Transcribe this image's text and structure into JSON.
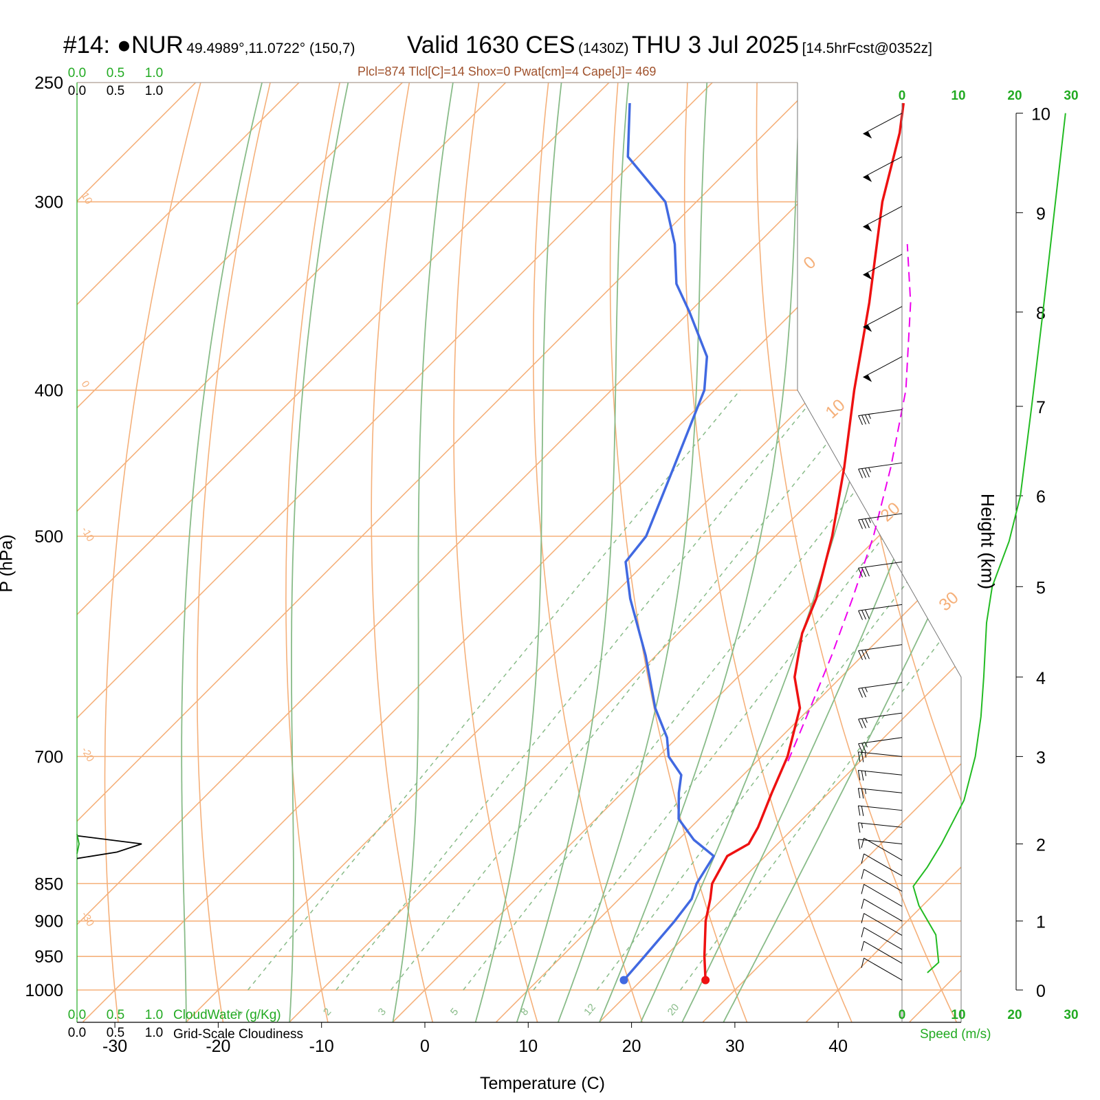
{
  "header": {
    "station": "#14: ●NUR",
    "coords": "49.4989°,11.0722° (150,7)",
    "valid": "Valid 1630 CES",
    "zulu": "(1430Z)",
    "date": "THU 3 Jul 2025",
    "forecast": "[14.5hrFcst@0352z]"
  },
  "params_line": "Plcl=874 Tlcl[C]=14 Shox=0 Pwat[cm]=4 Cape[J]= 469",
  "colors": {
    "temperature": "#ee1111",
    "dewpoint": "#4169e1",
    "parcel": "#ee00ee",
    "isotherm_dry_adiabat": "#f5b07a",
    "moist_adiabat": "#88bb88",
    "mixing_ratio": "#88bb88",
    "speed": "#22bb22",
    "barb": "#000000"
  },
  "chart_data": {
    "type": "skew-t",
    "xlabel": "Temperature (C)",
    "ylabel": "P (hPa)",
    "y2label": "Height (km)",
    "xlim": [
      -34,
      36
    ],
    "ylim": [
      1000,
      250
    ],
    "x_ticks": [
      -30,
      -20,
      -10,
      0,
      10,
      20,
      30,
      40
    ],
    "pressure_levels": [
      1000,
      950,
      900,
      850,
      700,
      500,
      400,
      300,
      250
    ],
    "height_ticks_km": [
      0,
      1,
      2,
      3,
      4,
      5,
      6,
      7,
      8,
      9,
      10
    ],
    "height_at_pressure": [
      {
        "p": 1000,
        "km": 0
      },
      {
        "p": 900,
        "km": 1
      },
      {
        "p": 800,
        "km": 2
      },
      {
        "p": 700,
        "km": 3
      },
      {
        "p": 620,
        "km": 4
      },
      {
        "p": 540,
        "km": 5
      },
      {
        "p": 470,
        "km": 6
      },
      {
        "p": 410,
        "km": 7
      },
      {
        "p": 355,
        "km": 8
      },
      {
        "p": 305,
        "km": 9
      },
      {
        "p": 262,
        "km": 10
      }
    ],
    "temperature": [
      {
        "p": 985,
        "t": 26.2
      },
      {
        "p": 950,
        "t": 23.8
      },
      {
        "p": 900,
        "t": 20.5
      },
      {
        "p": 870,
        "t": 18.8
      },
      {
        "p": 850,
        "t": 17.5
      },
      {
        "p": 815,
        "t": 16.3
      },
      {
        "p": 800,
        "t": 17.2
      },
      {
        "p": 780,
        "t": 16.5
      },
      {
        "p": 740,
        "t": 14.5
      },
      {
        "p": 700,
        "t": 12.5
      },
      {
        "p": 650,
        "t": 9.0
      },
      {
        "p": 620,
        "t": 5.5
      },
      {
        "p": 580,
        "t": 2.0
      },
      {
        "p": 550,
        "t": 0.0
      },
      {
        "p": 500,
        "t": -4.5
      },
      {
        "p": 450,
        "t": -10.0
      },
      {
        "p": 400,
        "t": -16.5
      },
      {
        "p": 350,
        "t": -23.5
      },
      {
        "p": 300,
        "t": -32.0
      },
      {
        "p": 270,
        "t": -37.0
      },
      {
        "p": 258,
        "t": -39.5
      }
    ],
    "dewpoint": [
      {
        "p": 985,
        "td": 18.3
      },
      {
        "p": 950,
        "td": 18.0
      },
      {
        "p": 900,
        "td": 17.5
      },
      {
        "p": 870,
        "td": 17.0
      },
      {
        "p": 850,
        "td": 16.0
      },
      {
        "p": 815,
        "td": 15.0
      },
      {
        "p": 795,
        "td": 11.5
      },
      {
        "p": 770,
        "td": 8.0
      },
      {
        "p": 740,
        "td": 5.5
      },
      {
        "p": 720,
        "td": 4.0
      },
      {
        "p": 700,
        "td": 1.0
      },
      {
        "p": 680,
        "td": -1.0
      },
      {
        "p": 650,
        "td": -5.0
      },
      {
        "p": 600,
        "td": -11.0
      },
      {
        "p": 550,
        "td": -18.0
      },
      {
        "p": 520,
        "td": -22.0
      },
      {
        "p": 500,
        "td": -22.5
      },
      {
        "p": 450,
        "td": -26.5
      },
      {
        "p": 400,
        "td": -31.0
      },
      {
        "p": 380,
        "td": -34.0
      },
      {
        "p": 355,
        "td": -40.0
      },
      {
        "p": 340,
        "td": -44.0
      },
      {
        "p": 320,
        "td": -48.0
      },
      {
        "p": 300,
        "td": -53.0
      },
      {
        "p": 280,
        "td": -61.0
      },
      {
        "p": 258,
        "td": -66.0
      }
    ],
    "parcel": [
      {
        "p": 705,
        "t": 13.0
      },
      {
        "p": 650,
        "t": 10.0
      },
      {
        "p": 600,
        "t": 7.0
      },
      {
        "p": 550,
        "t": 3.5
      },
      {
        "p": 500,
        "t": -0.5
      },
      {
        "p": 450,
        "t": -5.5
      },
      {
        "p": 400,
        "t": -11.5
      },
      {
        "p": 350,
        "t": -19.5
      },
      {
        "p": 320,
        "t": -25.5
      }
    ],
    "isotherm_labels": [
      "10",
      "0",
      "-10",
      "-20",
      "-30"
    ],
    "diag_temp_labels": [
      "0",
      "10",
      "20",
      "30"
    ],
    "mixing_ratio_lines": [
      "1",
      "2",
      "3",
      "5",
      "8",
      "12",
      "20"
    ],
    "cloud_scale": {
      "ticks": [
        "0.0",
        "0.5",
        "1.0"
      ]
    },
    "cloud_water_label": "CloudWater (g/Kg)",
    "cloudiness_label": "Grid-Scale Cloudiness",
    "speed_ticks": [
      "0",
      "10",
      "20",
      "30"
    ],
    "speed_label": "Speed (m/s)",
    "wind_speed": [
      {
        "km": 0.25,
        "v": 4.5
      },
      {
        "km": 0.4,
        "v": 6.5
      },
      {
        "km": 0.8,
        "v": 6.0
      },
      {
        "km": 1.2,
        "v": 3.0
      },
      {
        "km": 1.45,
        "v": 2.0
      },
      {
        "km": 1.7,
        "v": 4.5
      },
      {
        "km": 2.0,
        "v": 7.0
      },
      {
        "km": 2.5,
        "v": 11.0
      },
      {
        "km": 3.0,
        "v": 13.0
      },
      {
        "km": 3.5,
        "v": 14.0
      },
      {
        "km": 4.0,
        "v": 14.5
      },
      {
        "km": 4.6,
        "v": 15.0
      },
      {
        "km": 5.0,
        "v": 16.0
      },
      {
        "km": 5.5,
        "v": 19.0
      },
      {
        "km": 6.0,
        "v": 21.0
      },
      {
        "km": 7.0,
        "v": 23.0
      },
      {
        "km": 8.0,
        "v": 25.0
      },
      {
        "km": 9.0,
        "v": 27.0
      },
      {
        "km": 10.2,
        "v": 29.0
      }
    ],
    "cloud_cover": [
      {
        "p": 790,
        "v": 0.0
      },
      {
        "p": 800,
        "v": 1.05
      },
      {
        "p": 810,
        "v": 0.65
      },
      {
        "p": 818,
        "v": 0.0
      }
    ],
    "wind_barbs": [
      {
        "p": 262,
        "speed_kt": 50
      },
      {
        "p": 280,
        "speed_kt": 50
      },
      {
        "p": 302,
        "speed_kt": 50
      },
      {
        "p": 325,
        "speed_kt": 50
      },
      {
        "p": 352,
        "speed_kt": 50
      },
      {
        "p": 380,
        "speed_kt": 50
      },
      {
        "p": 412,
        "speed_kt": 35
      },
      {
        "p": 447,
        "speed_kt": 35
      },
      {
        "p": 483,
        "speed_kt": 35
      },
      {
        "p": 520,
        "speed_kt": 30
      },
      {
        "p": 555,
        "speed_kt": 30
      },
      {
        "p": 590,
        "speed_kt": 30
      },
      {
        "p": 625,
        "speed_kt": 25
      },
      {
        "p": 655,
        "speed_kt": 25
      },
      {
        "p": 680,
        "speed_kt": 25
      },
      {
        "p": 700,
        "speed_kt": 25
      },
      {
        "p": 720,
        "speed_kt": 25
      },
      {
        "p": 740,
        "speed_kt": 25
      },
      {
        "p": 760,
        "speed_kt": 20
      },
      {
        "p": 780,
        "speed_kt": 15
      },
      {
        "p": 800,
        "speed_kt": 10
      },
      {
        "p": 820,
        "speed_kt": 10
      },
      {
        "p": 840,
        "speed_kt": 10
      },
      {
        "p": 860,
        "speed_kt": 10
      },
      {
        "p": 880,
        "speed_kt": 10
      },
      {
        "p": 900,
        "speed_kt": 10
      },
      {
        "p": 920,
        "speed_kt": 10
      },
      {
        "p": 940,
        "speed_kt": 10
      },
      {
        "p": 960,
        "speed_kt": 10
      },
      {
        "p": 985,
        "speed_kt": 10
      }
    ]
  }
}
